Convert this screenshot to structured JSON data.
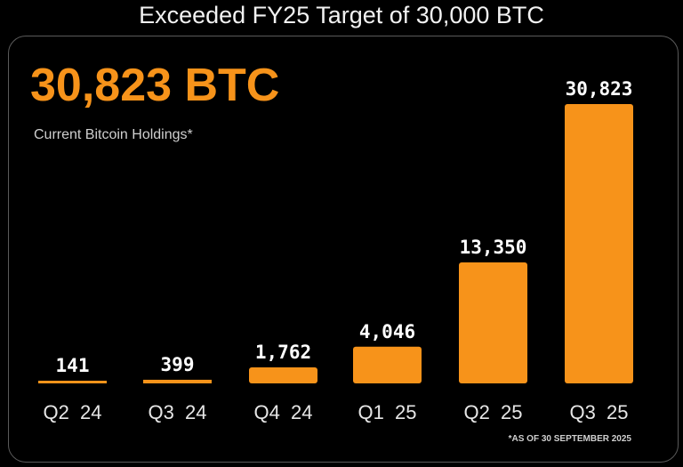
{
  "title": "Exceeded FY25 Target of 30,000 BTC",
  "headline": "30,823 BTC",
  "subtitle": "Current Bitcoin Holdings*",
  "footnote": "*AS OF 30 SEPTEMBER 2025",
  "colors": {
    "bar": "#f7931a",
    "background": "#000000",
    "headline": "#f7931a"
  },
  "chart_data": {
    "type": "bar",
    "categories": [
      "Q2  24",
      "Q3  24",
      "Q4  24",
      "Q1  25",
      "Q2  25",
      "Q3  25"
    ],
    "values": [
      141,
      399,
      1762,
      4046,
      13350,
      30823
    ],
    "data_labels": [
      "141",
      "399",
      "1,762",
      "4,046",
      "13,350",
      "30,823"
    ],
    "ylim": [
      0,
      30823
    ],
    "grid": false,
    "unit": "BTC"
  }
}
